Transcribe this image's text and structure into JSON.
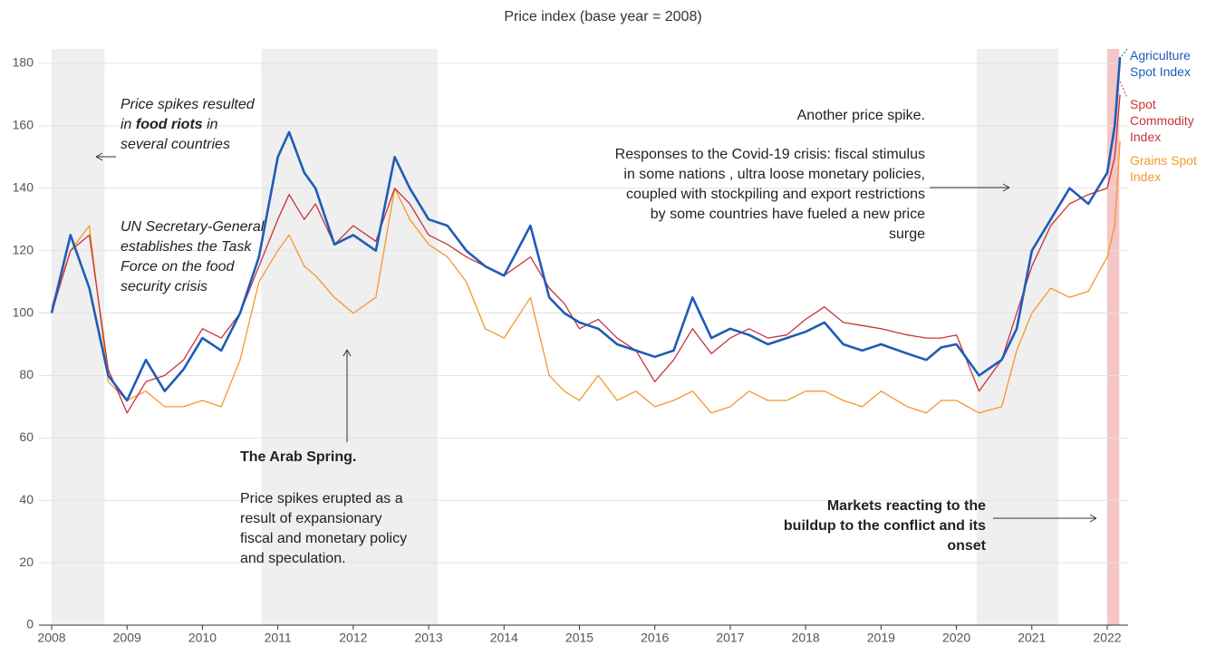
{
  "chart_data": {
    "type": "line",
    "title": "Price index (base year = 2008)",
    "x": [
      2008.0,
      2008.25,
      2008.5,
      2008.75,
      2009.0,
      2009.25,
      2009.5,
      2009.75,
      2010.0,
      2010.25,
      2010.5,
      2010.75,
      2011.0,
      2011.15,
      2011.35,
      2011.5,
      2011.75,
      2012.0,
      2012.3,
      2012.55,
      2012.75,
      2013.0,
      2013.25,
      2013.5,
      2013.75,
      2014.0,
      2014.35,
      2014.6,
      2014.8,
      2015.0,
      2015.25,
      2015.5,
      2015.75,
      2016.0,
      2016.25,
      2016.5,
      2016.75,
      2017.0,
      2017.25,
      2017.5,
      2017.75,
      2018.0,
      2018.25,
      2018.5,
      2018.75,
      2019.0,
      2019.35,
      2019.6,
      2019.8,
      2020.0,
      2020.3,
      2020.6,
      2020.8,
      2021.0,
      2021.25,
      2021.5,
      2021.75,
      2022.0,
      2022.1,
      2022.17
    ],
    "series": [
      {
        "name": "Grains Spot Index",
        "color": "#f5972a",
        "values": [
          102,
          120,
          128,
          78,
          72,
          75,
          70,
          70,
          72,
          70,
          85,
          110,
          120,
          125,
          115,
          112,
          105,
          100,
          105,
          140,
          130,
          122,
          118,
          110,
          95,
          92,
          105,
          80,
          75,
          72,
          80,
          72,
          75,
          70,
          72,
          75,
          68,
          70,
          75,
          72,
          72,
          75,
          75,
          72,
          70,
          75,
          70,
          68,
          72,
          72,
          68,
          70,
          88,
          100,
          108,
          105,
          107,
          118,
          128,
          155
        ]
      },
      {
        "name": "Spot Commodity Index",
        "color": "#c8333b",
        "values": [
          100,
          120,
          125,
          82,
          68,
          78,
          80,
          85,
          95,
          92,
          100,
          115,
          130,
          138,
          130,
          135,
          122,
          128,
          123,
          140,
          135,
          125,
          122,
          118,
          115,
          112,
          118,
          108,
          103,
          95,
          98,
          92,
          88,
          78,
          85,
          95,
          87,
          92,
          95,
          92,
          93,
          98,
          102,
          97,
          96,
          95,
          93,
          92,
          92,
          93,
          75,
          85,
          100,
          115,
          128,
          135,
          138,
          140,
          150,
          170
        ]
      },
      {
        "name": "Agriculture Spot Index",
        "color": "#1f5bb8",
        "values": [
          100,
          125,
          108,
          80,
          72,
          85,
          75,
          82,
          92,
          88,
          100,
          118,
          150,
          158,
          145,
          140,
          122,
          125,
          120,
          150,
          140,
          130,
          128,
          120,
          115,
          112,
          128,
          105,
          100,
          97,
          95,
          90,
          88,
          86,
          88,
          105,
          92,
          95,
          93,
          90,
          92,
          94,
          97,
          90,
          88,
          90,
          87,
          85,
          89,
          90,
          80,
          85,
          95,
          120,
          130,
          140,
          135,
          145,
          160,
          182
        ]
      }
    ],
    "xlim": [
      2008,
      2022.3
    ],
    "xticks": [
      2008,
      2009,
      2010,
      2011,
      2012,
      2013,
      2014,
      2015,
      2016,
      2017,
      2018,
      2019,
      2020,
      2021,
      2022
    ],
    "ylim": [
      0,
      180
    ],
    "yticks": [
      0,
      20,
      40,
      60,
      80,
      100,
      120,
      140,
      160,
      180
    ],
    "grid": true,
    "shaded_periods": [
      [
        2008.0,
        2008.7
      ],
      [
        2010.78,
        2013.12
      ],
      [
        2020.27,
        2021.35
      ]
    ],
    "highlight_period": [
      2022.0,
      2022.16
    ],
    "highlight_color": "#f4c6c6",
    "annotations": {
      "food_riots": [
        "Price spikes resulted in ",
        "food riots",
        " in several countries"
      ],
      "task_force": "UN Secretary-General establishes the Task Force on the food security crisis",
      "arab_spring_title": "The Arab Spring.",
      "arab_spring_text": "Price spikes erupted as a result of expansionary fiscal and monetary policy  and speculation.",
      "another_spike": "Another price spike.",
      "covid": "Responses to the Covid-19 crisis:  fiscal stimulus in some nations , ultra loose monetary policies, coupled with stockpiling and export restrictions by some countries have fueled a new price surge",
      "conflict": "Markets reacting to the buildup to the conflict and its onset"
    }
  }
}
